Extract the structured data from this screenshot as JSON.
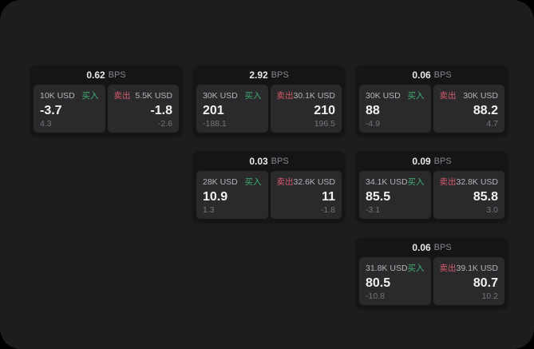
{
  "labels": {
    "buy": "买入",
    "sell": "卖出",
    "bps_unit": "BPS"
  },
  "colors": {
    "page_outer": "#000000",
    "panel_bg": "#1d1d1f",
    "card_bg": "#151517",
    "tile_bg": "#2a2a2c",
    "buy_green": "#3fae72",
    "sell_red": "#d85a6c",
    "value_white": "#f1f1f2",
    "muted_gray": "#757579"
  },
  "cards": [
    {
      "bps": "0.62",
      "buy": {
        "size": "10K USD",
        "price": "-3.7",
        "delta": "4.3"
      },
      "sell": {
        "size": "5.5K USD",
        "price": "-1.8",
        "delta": "-2.6"
      }
    },
    {
      "bps": "2.92",
      "buy": {
        "size": "30K USD",
        "price": "201",
        "delta": "-188.1"
      },
      "sell": {
        "size": "30.1K USD",
        "price": "210",
        "delta": "196.5"
      }
    },
    {
      "bps": "0.06",
      "buy": {
        "size": "30K USD",
        "price": "88",
        "delta": "-4.9"
      },
      "sell": {
        "size": "30K USD",
        "price": "88.2",
        "delta": "4.7"
      }
    },
    {
      "bps": "0.03",
      "buy": {
        "size": "28K USD",
        "price": "10.9",
        "delta": "1.3"
      },
      "sell": {
        "size": "32.6K USD",
        "price": "11",
        "delta": "-1.8"
      }
    },
    {
      "bps": "0.09",
      "buy": {
        "size": "34.1K USD",
        "price": "85.5",
        "delta": "-3.1"
      },
      "sell": {
        "size": "32.8K USD",
        "price": "85.8",
        "delta": "3.0"
      }
    },
    {
      "bps": "0.06",
      "buy": {
        "size": "31.8K USD",
        "price": "80.5",
        "delta": "-10.8"
      },
      "sell": {
        "size": "39.1K USD",
        "price": "80.7",
        "delta": "10.2"
      }
    }
  ]
}
